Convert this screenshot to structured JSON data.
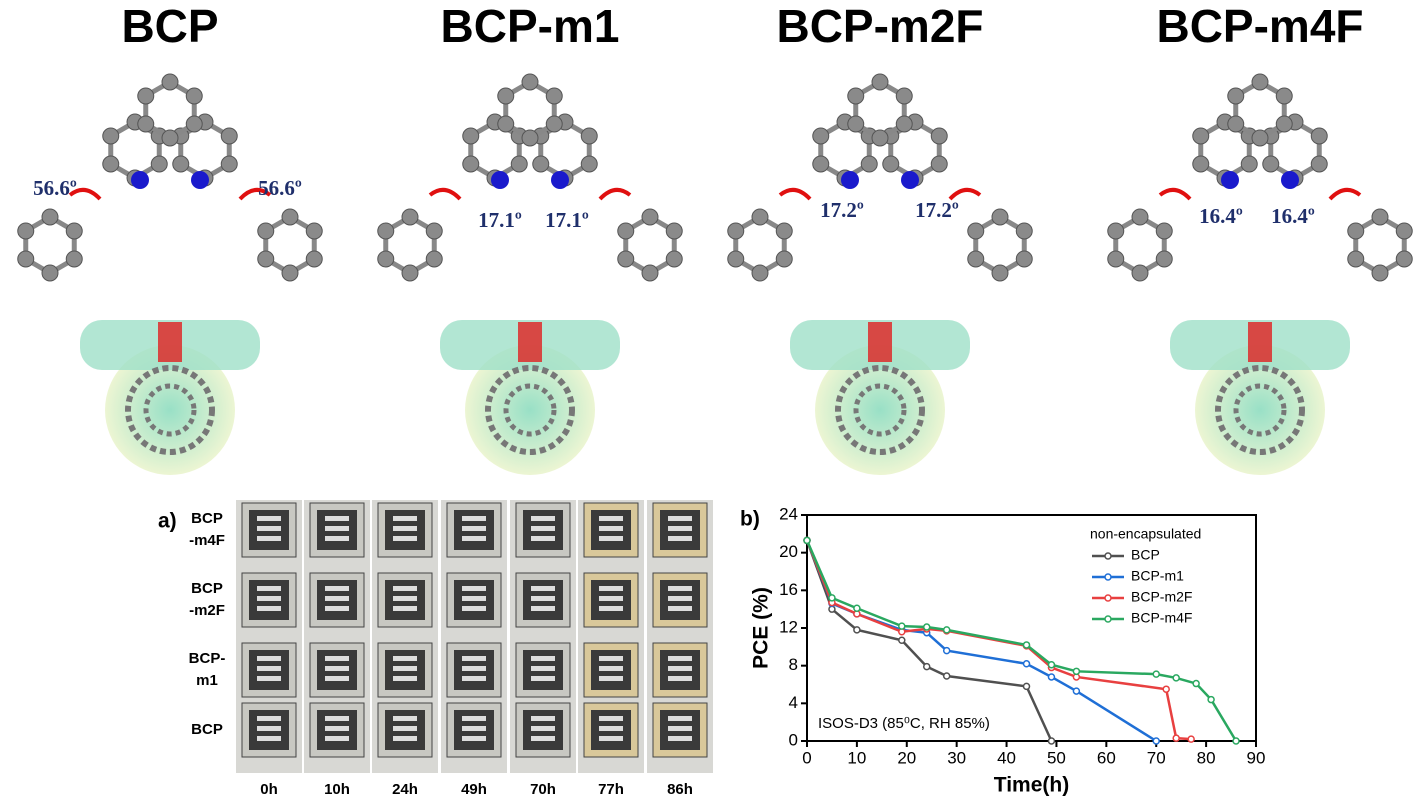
{
  "structures": [
    {
      "name": "BCP",
      "angles": [
        "56.6º",
        "56.6º"
      ]
    },
    {
      "name": "BCP-m1",
      "angles": [
        "17.1º",
        "17.1º"
      ]
    },
    {
      "name": "BCP-m2F",
      "angles": [
        "17.2º",
        "17.2º"
      ]
    },
    {
      "name": "BCP-m4F",
      "angles": [
        "16.4º",
        "16.4º"
      ]
    }
  ],
  "panel_a": {
    "label": "a)",
    "rows": [
      [
        "BCP",
        "-m4F"
      ],
      [
        "BCP",
        "-m2F"
      ],
      [
        "BCP-",
        "m1"
      ],
      [
        "BCP"
      ]
    ],
    "times": [
      "0h",
      "10h",
      "24h",
      "49h",
      "70h",
      "77h",
      "86h"
    ]
  },
  "chart_data": {
    "type": "line",
    "panel_label": "b)",
    "xlabel": "Time(h)",
    "ylabel": "PCE (%)",
    "annotation": "ISOS-D3 (85⁰C, RH 85%)",
    "legend_title": "non-encapsulated",
    "xlim": [
      0,
      90
    ],
    "xticks": [
      0,
      10,
      20,
      30,
      40,
      50,
      60,
      70,
      80,
      90
    ],
    "ylim": [
      0,
      24
    ],
    "yticks": [
      0,
      4,
      8,
      12,
      16,
      20,
      24
    ],
    "series": [
      {
        "name": "BCP",
        "color": "#505050",
        "x": [
          0,
          5,
          10,
          19,
          24,
          28,
          44,
          49
        ],
        "values": [
          21.3,
          14.0,
          11.8,
          10.7,
          7.9,
          6.9,
          5.8,
          0
        ]
      },
      {
        "name": "BCP-m1",
        "color": "#1f6fd6",
        "x": [
          0,
          5,
          10,
          19,
          24,
          28,
          44,
          49,
          54,
          70
        ],
        "values": [
          21.3,
          14.6,
          13.5,
          11.8,
          11.5,
          9.6,
          8.2,
          6.8,
          5.3,
          0
        ]
      },
      {
        "name": "BCP-m2F",
        "color": "#e84040",
        "x": [
          0,
          5,
          10,
          19,
          24,
          28,
          44,
          49,
          54,
          72,
          74,
          77
        ],
        "values": [
          21.3,
          14.7,
          13.5,
          11.6,
          11.9,
          11.7,
          10.1,
          7.8,
          6.8,
          5.5,
          0.3,
          0.2
        ]
      },
      {
        "name": "BCP-m4F",
        "color": "#2aa860",
        "x": [
          0,
          5,
          10,
          19,
          24,
          28,
          44,
          49,
          54,
          70,
          74,
          78,
          81,
          86
        ],
        "values": [
          21.3,
          15.2,
          14.1,
          12.2,
          12.1,
          11.8,
          10.2,
          8.1,
          7.4,
          7.1,
          6.7,
          6.1,
          4.4,
          0
        ]
      }
    ]
  }
}
